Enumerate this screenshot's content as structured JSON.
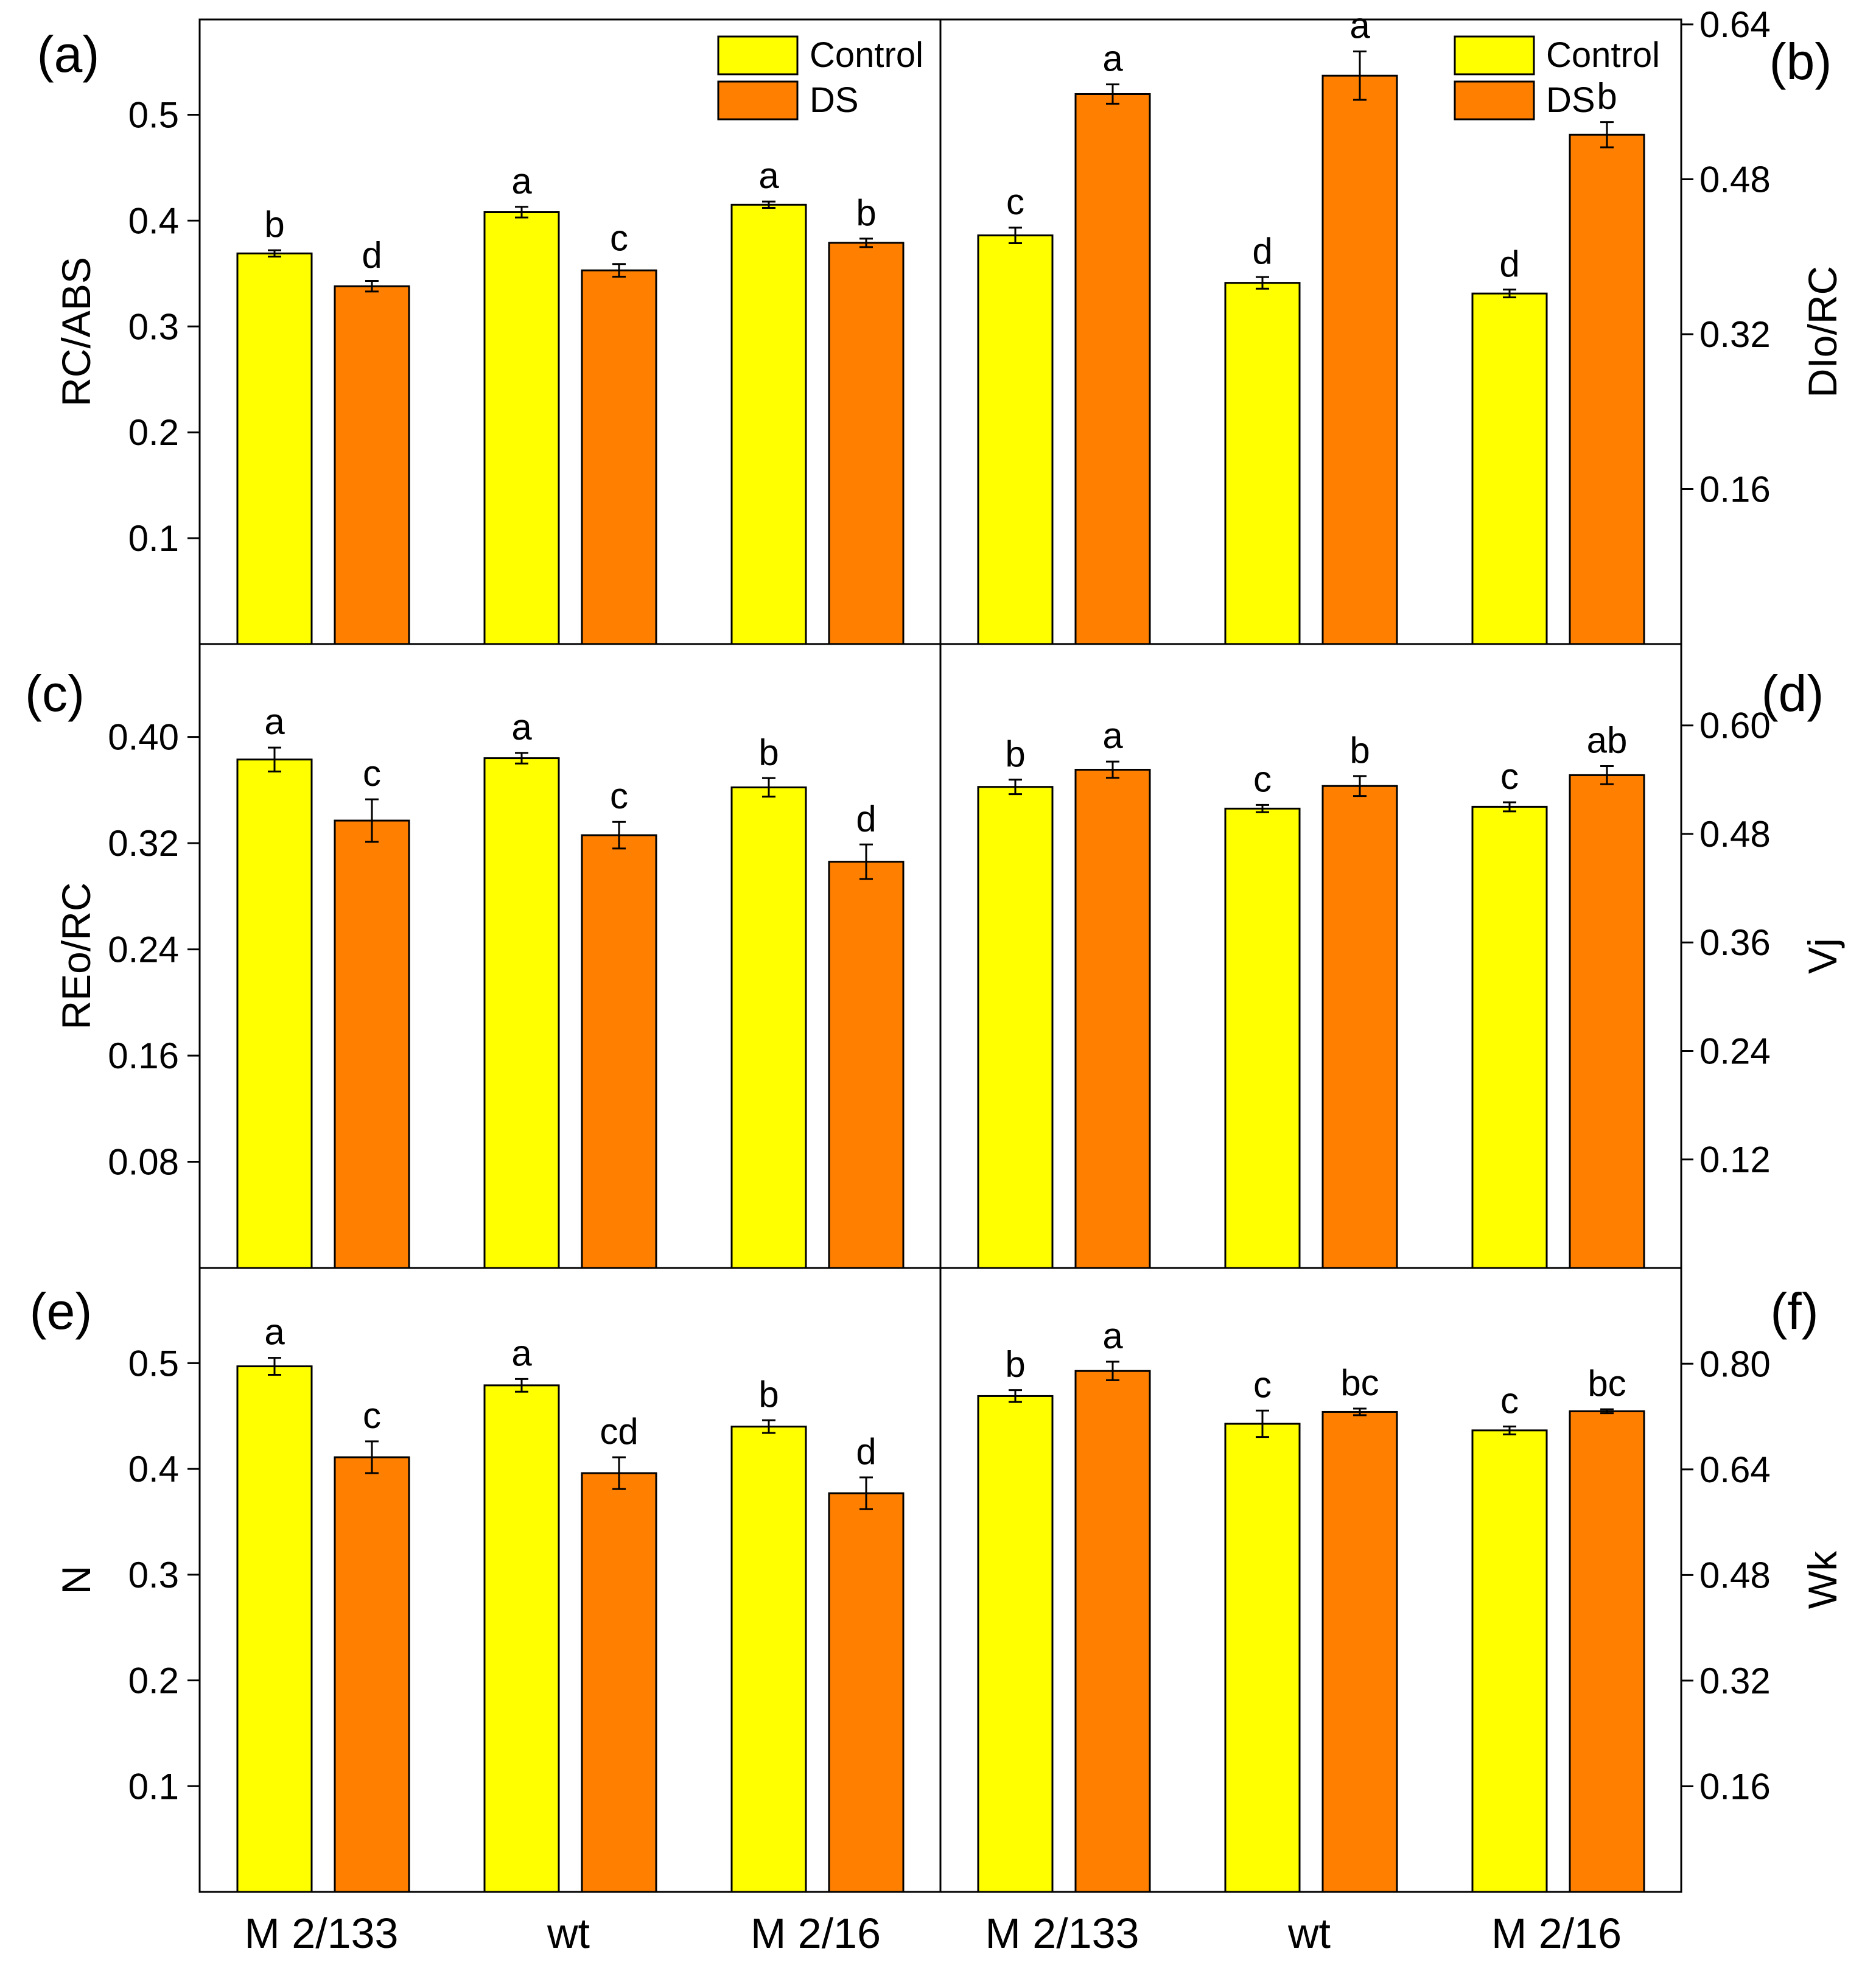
{
  "colors": {
    "control": "#FFFF00",
    "ds": "#FF7F00",
    "frame": "#000000"
  },
  "legend": {
    "control_label": "Control",
    "ds_label": "DS"
  },
  "categories": [
    "M 2/133",
    "wt",
    "M 2/16",
    "M 2/133",
    "wt",
    "M 2/16"
  ],
  "chart_data": [
    {
      "type": "bar",
      "panel_label": "(a)",
      "ylabel": "RC/ABS",
      "ylim": [
        0,
        0.59
      ],
      "yticks": [
        0.1,
        0.2,
        0.3,
        0.4,
        0.5
      ],
      "tick_labels": [
        "0.1",
        "0.2",
        "0.3",
        "0.4",
        "0.5"
      ],
      "categories": [
        "M 2/133",
        "wt",
        "M 2/16"
      ],
      "series": [
        {
          "name": "Control",
          "values": [
            0.369,
            0.408,
            0.415
          ],
          "errors": [
            0.003,
            0.005,
            0.003
          ],
          "letters": [
            "b",
            "a",
            "a"
          ]
        },
        {
          "name": "DS",
          "values": [
            0.338,
            0.353,
            0.379
          ],
          "errors": [
            0.005,
            0.006,
            0.004
          ],
          "letters": [
            "d",
            "c",
            "b"
          ]
        }
      ]
    },
    {
      "type": "bar",
      "panel_label": "(b)",
      "ylabel": "DIo/RC",
      "ylim": [
        0,
        0.645
      ],
      "yticks": [
        0.16,
        0.32,
        0.48,
        0.64
      ],
      "tick_labels": [
        "0.16",
        "0.32",
        "0.48",
        "0.64"
      ],
      "categories": [
        "M 2/133",
        "wt",
        "M 2/16"
      ],
      "series": [
        {
          "name": "Control",
          "values": [
            0.422,
            0.373,
            0.362
          ],
          "errors": [
            0.008,
            0.006,
            0.004
          ],
          "letters": [
            "c",
            "d",
            "d"
          ]
        },
        {
          "name": "DS",
          "values": [
            0.568,
            0.587,
            0.526
          ],
          "errors": [
            0.01,
            0.025,
            0.013
          ],
          "letters": [
            "a",
            "a",
            "b"
          ]
        }
      ]
    },
    {
      "type": "bar",
      "panel_label": "(c)",
      "ylabel": "REo/RC",
      "ylim": [
        0,
        0.47
      ],
      "yticks": [
        0.08,
        0.16,
        0.24,
        0.32,
        0.4
      ],
      "tick_labels": [
        "0.08",
        "0.16",
        "0.24",
        "0.32",
        "0.40"
      ],
      "categories": [
        "M 2/133",
        "wt",
        "M 2/16"
      ],
      "series": [
        {
          "name": "Control",
          "values": [
            0.383,
            0.384,
            0.362
          ],
          "errors": [
            0.009,
            0.004,
            0.007
          ],
          "letters": [
            "a",
            "a",
            "b"
          ]
        },
        {
          "name": "DS",
          "values": [
            0.337,
            0.326,
            0.306
          ],
          "errors": [
            0.016,
            0.01,
            0.013
          ],
          "letters": [
            "c",
            "c",
            "d"
          ]
        }
      ]
    },
    {
      "type": "bar",
      "panel_label": "(d)",
      "ylabel": "Vj",
      "ylim": [
        0,
        0.69
      ],
      "yticks": [
        0.12,
        0.24,
        0.36,
        0.48,
        0.6
      ],
      "tick_labels": [
        "0.12",
        "0.24",
        "0.36",
        "0.48",
        "0.60"
      ],
      "categories": [
        "M 2/133",
        "wt",
        "M 2/16"
      ],
      "series": [
        {
          "name": "Control",
          "values": [
            0.532,
            0.508,
            0.51
          ],
          "errors": [
            0.008,
            0.004,
            0.005
          ],
          "letters": [
            "b",
            "c",
            "c"
          ]
        },
        {
          "name": "DS",
          "values": [
            0.551,
            0.533,
            0.545
          ],
          "errors": [
            0.009,
            0.011,
            0.01
          ],
          "letters": [
            "a",
            "b",
            "ab"
          ]
        }
      ]
    },
    {
      "type": "bar",
      "panel_label": "(e)",
      "ylabel": "N",
      "ylim": [
        0,
        0.59
      ],
      "yticks": [
        0.1,
        0.2,
        0.3,
        0.4,
        0.5
      ],
      "tick_labels": [
        "0.1",
        "0.2",
        "0.3",
        "0.4",
        "0.5"
      ],
      "categories": [
        "M 2/133",
        "wt",
        "M 2/16"
      ],
      "series": [
        {
          "name": "Control",
          "values": [
            0.497,
            0.479,
            0.44
          ],
          "errors": [
            0.008,
            0.006,
            0.006
          ],
          "letters": [
            "a",
            "a",
            "b"
          ]
        },
        {
          "name": "DS",
          "values": [
            0.411,
            0.396,
            0.377
          ],
          "errors": [
            0.015,
            0.015,
            0.015
          ],
          "letters": [
            "c",
            "cd",
            "d"
          ]
        }
      ]
    },
    {
      "type": "bar",
      "panel_label": "(f)",
      "ylabel": "Wk",
      "ylim": [
        0,
        0.945
      ],
      "yticks": [
        0.16,
        0.32,
        0.48,
        0.64,
        0.8
      ],
      "tick_labels": [
        "0.16",
        "0.32",
        "0.48",
        "0.64",
        "0.80"
      ],
      "categories": [
        "M 2/133",
        "wt",
        "M 2/16"
      ],
      "series": [
        {
          "name": "Control",
          "values": [
            0.751,
            0.709,
            0.699
          ],
          "errors": [
            0.009,
            0.02,
            0.006
          ],
          "letters": [
            "b",
            "c",
            "c"
          ]
        },
        {
          "name": "DS",
          "values": [
            0.789,
            0.727,
            0.728
          ],
          "errors": [
            0.014,
            0.005,
            0.003
          ],
          "letters": [
            "a",
            "bc",
            "bc"
          ]
        }
      ]
    }
  ]
}
